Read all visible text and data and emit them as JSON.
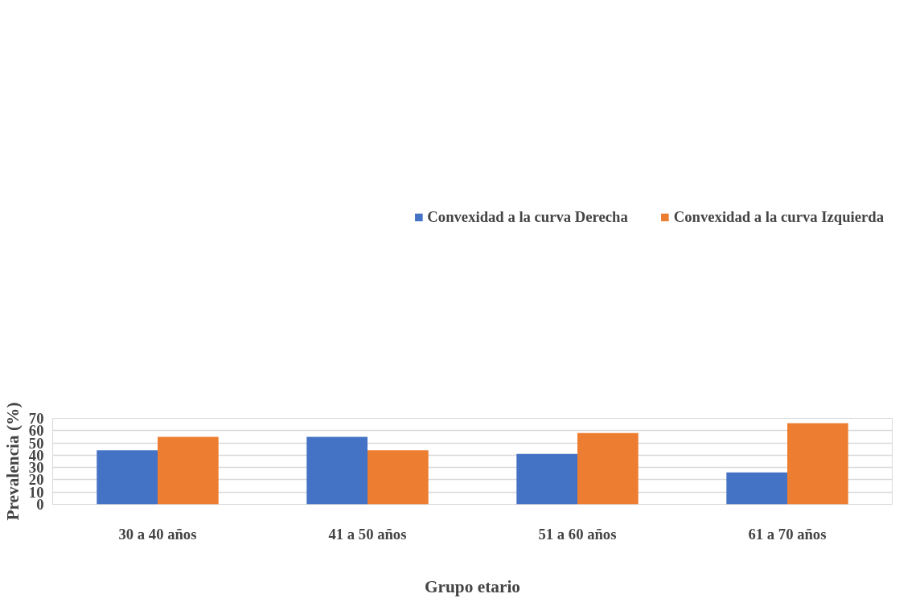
{
  "chart_data": {
    "type": "bar",
    "xlabel": "Grupo etario",
    "ylabel": "Prevalencia (%)",
    "categories": [
      "30 a 40 años",
      "41 a 50 años",
      "51 a 60 años",
      "61 a 70 años"
    ],
    "series": [
      {
        "name": "Convexidad a la curva Derecha",
        "color": "#4472c4",
        "values": [
          44,
          55,
          41,
          26
        ]
      },
      {
        "name": "Convexidad a la curva Izquierda",
        "color": "#ed7d31",
        "values": [
          55,
          44,
          58,
          66
        ]
      }
    ],
    "ylim": [
      0,
      70
    ],
    "yticks": [
      0,
      10,
      20,
      30,
      40,
      50,
      60,
      70
    ],
    "grid": "y",
    "legend": "top"
  }
}
